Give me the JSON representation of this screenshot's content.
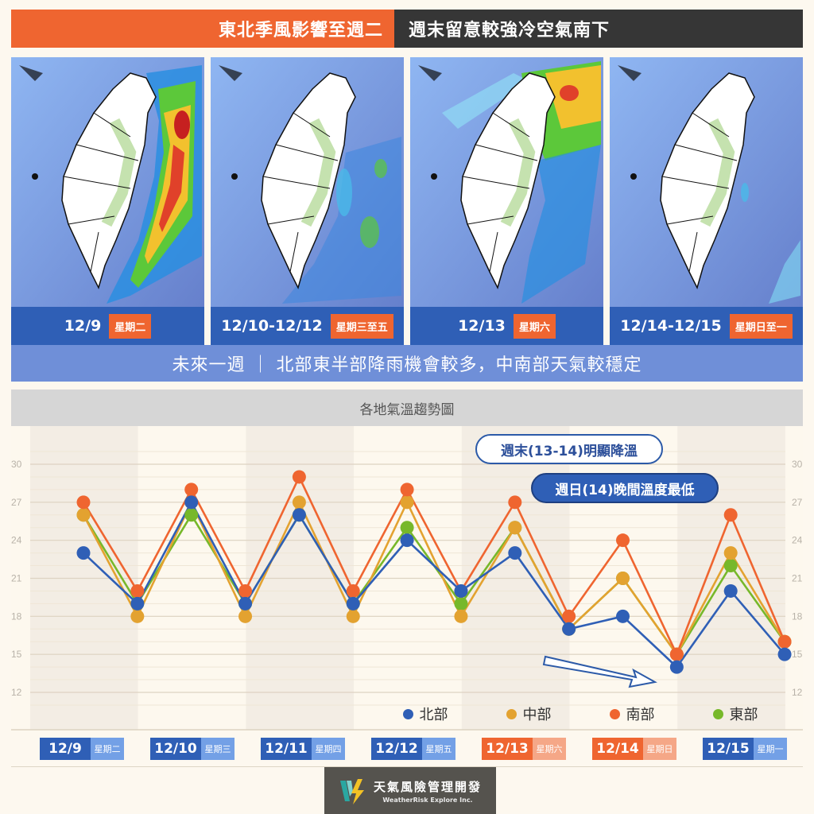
{
  "banner": {
    "left": "東北季風影響至週二",
    "right": "週末留意較強冷空氣南下"
  },
  "maps": [
    {
      "date": "12/9",
      "dow": "星期二",
      "rain_intensity": "heavy-east"
    },
    {
      "date": "12/10-12/12",
      "dow": "星期三至五",
      "rain_intensity": "light-east"
    },
    {
      "date": "12/13",
      "dow": "星期六",
      "rain_intensity": "heavy-north"
    },
    {
      "date": "12/14-12/15",
      "dow": "星期日至一",
      "rain_intensity": "minimal"
    }
  ],
  "summary": "未來一週 ｜ 北部東半部降雨機會較多，中南部天氣較穩定",
  "chart_title": "各地氣溫趨勢圖",
  "annotations": {
    "note1": "週末(13-14)明顯降溫",
    "note2": "週日(14)晚間溫度最低"
  },
  "legend": [
    {
      "label": "北部",
      "color": "#2f5fb6"
    },
    {
      "label": "中部",
      "color": "#e3a230"
    },
    {
      "label": "南部",
      "color": "#ef6530"
    },
    {
      "label": "東部",
      "color": "#77b82a"
    }
  ],
  "days": [
    {
      "date": "12/9",
      "dow": "星期二",
      "weekend": false
    },
    {
      "date": "12/10",
      "dow": "星期三",
      "weekend": false
    },
    {
      "date": "12/11",
      "dow": "星期四",
      "weekend": false
    },
    {
      "date": "12/12",
      "dow": "星期五",
      "weekend": false
    },
    {
      "date": "12/13",
      "dow": "星期六",
      "weekend": true
    },
    {
      "date": "12/14",
      "dow": "星期日",
      "weekend": true
    },
    {
      "date": "12/15",
      "dow": "星期一",
      "weekend": false
    }
  ],
  "logo": {
    "cn": "天氣風險管理開發",
    "en": "WeatherRisk Explore Inc."
  },
  "chart_data": {
    "type": "line",
    "title": "各地氣溫趨勢圖",
    "xlabel": "",
    "ylabel": "",
    "ylim": [
      10,
      32
    ],
    "yticks": [
      12,
      15,
      18,
      21,
      24,
      27,
      30
    ],
    "grid": true,
    "legend_position": "bottom-right",
    "categories": [
      "12/9 日",
      "12/9 夜",
      "12/10 日",
      "12/10 夜",
      "12/11 日",
      "12/11 夜",
      "12/12 日",
      "12/12 夜",
      "12/13 日",
      "12/13 夜",
      "12/14 日",
      "12/14 夜",
      "12/15 日",
      "12/15 夜"
    ],
    "series": [
      {
        "name": "北部",
        "color": "#2f5fb6",
        "values": [
          23,
          19,
          27,
          19,
          26,
          19,
          24,
          20,
          23,
          17,
          18,
          14,
          20,
          15
        ]
      },
      {
        "name": "中部",
        "color": "#e3a230",
        "values": [
          26,
          18,
          27,
          18,
          27,
          18,
          27,
          18,
          25,
          17,
          21,
          15,
          23,
          16
        ]
      },
      {
        "name": "南部",
        "color": "#ef6530",
        "values": [
          27,
          20,
          28,
          20,
          29,
          20,
          28,
          20,
          27,
          18,
          24,
          15,
          26,
          16
        ]
      },
      {
        "name": "東部",
        "color": "#77b82a",
        "values": [
          26,
          19,
          26,
          19,
          26,
          19,
          25,
          19,
          25,
          17,
          21,
          15,
          22,
          16
        ]
      }
    ],
    "annotations": [
      "週末(13-14)明顯降溫",
      "週日(14)晚間溫度最低"
    ]
  }
}
